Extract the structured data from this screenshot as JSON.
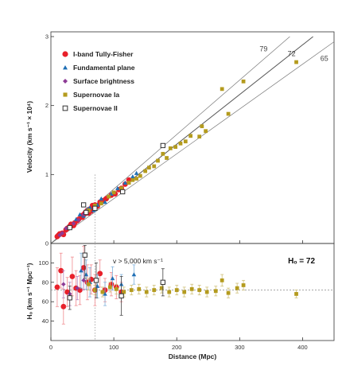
{
  "chart_data": [
    {
      "type": "scatter",
      "panel": "top",
      "ylabel": "Velocity (km s⁻¹ × 10⁴)",
      "xlim": [
        0,
        450
      ],
      "ylim": [
        0,
        3
      ],
      "yticks": [
        "0",
        "1",
        "2",
        "3"
      ],
      "grid": false,
      "legend": "top-left",
      "fit_lines": [
        {
          "label": "79",
          "slope": 79
        },
        {
          "label": "72",
          "slope": 72
        },
        {
          "label": "65",
          "slope": 65
        }
      ],
      "vertical_dotted_x": 70,
      "series": [
        {
          "name": "I-band Tully-Fisher",
          "marker": "circle",
          "color": "#e8202a",
          "x": [
            10,
            12,
            14,
            18,
            20,
            24,
            26,
            30,
            32,
            36,
            38,
            42,
            44,
            48,
            50,
            52,
            54,
            56,
            58,
            60,
            62,
            64,
            66,
            68,
            70,
            74,
            78,
            82,
            88,
            96,
            102,
            108,
            112,
            118,
            124
          ],
          "y": [
            0.1,
            0.12,
            0.14,
            0.15,
            0.13,
            0.2,
            0.22,
            0.25,
            0.28,
            0.26,
            0.3,
            0.33,
            0.35,
            0.4,
            0.38,
            0.42,
            0.44,
            0.46,
            0.48,
            0.44,
            0.5,
            0.47,
            0.55,
            0.52,
            0.56,
            0.54,
            0.6,
            0.62,
            0.65,
            0.7,
            0.72,
            0.78,
            0.8,
            0.86,
            0.92
          ]
        },
        {
          "name": "Fundamental plane",
          "marker": "triangle",
          "color": "#1f6fb5",
          "x": [
            40,
            46,
            52,
            58,
            62,
            68,
            74,
            80,
            86,
            96,
            106,
            118,
            130,
            136
          ],
          "y": [
            0.35,
            0.42,
            0.4,
            0.5,
            0.52,
            0.48,
            0.56,
            0.65,
            0.6,
            0.72,
            0.8,
            0.88,
            0.97,
            1.02
          ]
        },
        {
          "name": "Surface brightness",
          "marker": "diamond",
          "color": "#8d3b96",
          "x": [
            14,
            18,
            24,
            30,
            36,
            44,
            52
          ],
          "y": [
            0.12,
            0.15,
            0.22,
            0.24,
            0.29,
            0.34,
            0.42
          ]
        },
        {
          "name": "Supernovae Ia",
          "marker": "square",
          "color": "#b49b1e",
          "x": [
            60,
            70,
            80,
            92,
            100,
            112,
            124,
            130,
            136,
            142,
            150,
            156,
            164,
            170,
            178,
            184,
            190,
            198,
            206,
            214,
            222,
            236,
            240,
            246,
            272,
            282,
            306,
            390
          ],
          "y": [
            0.48,
            0.55,
            0.58,
            0.68,
            0.74,
            0.8,
            0.88,
            0.92,
            0.94,
            0.98,
            1.05,
            1.1,
            1.12,
            1.2,
            1.3,
            1.24,
            1.38,
            1.4,
            1.45,
            1.48,
            1.56,
            1.55,
            1.7,
            1.63,
            2.24,
            1.88,
            2.35,
            2.63
          ]
        },
        {
          "name": "Supernovae II",
          "marker": "open-square",
          "color": "#333333",
          "x": [
            30,
            52,
            56,
            70,
            114,
            178
          ],
          "y": [
            0.23,
            0.56,
            0.45,
            0.51,
            0.75,
            1.42
          ]
        }
      ]
    },
    {
      "type": "scatter",
      "panel": "bottom",
      "xlabel": "Distance (Mpc)",
      "ylabel": "Hₒ (km s⁻¹ Mpc⁻¹)",
      "xlim": [
        0,
        450
      ],
      "ylim": [
        20,
        120
      ],
      "xticks": [
        "0",
        "100",
        "200",
        "300",
        "400"
      ],
      "yticks": [
        "40",
        "60",
        "80",
        "100"
      ],
      "grid": false,
      "reference_line_y": 72,
      "vertical_dotted_x": 70,
      "annotation": "v > 5,000 km s⁻¹",
      "h_label": "Hₒ = 72",
      "series": [
        {
          "name": "I-band Tully-Fisher",
          "marker": "circle",
          "color": "#e8202a",
          "x": [
            10,
            16,
            20,
            26,
            34,
            40,
            46,
            52,
            58,
            64,
            70,
            78,
            86,
            96,
            104,
            112
          ],
          "y": [
            75,
            92,
            55,
            70,
            86,
            74,
            72,
            95,
            80,
            83,
            72,
            89,
            72,
            78,
            75,
            70
          ],
          "err": [
            20,
            18,
            18,
            15,
            20,
            18,
            15,
            22,
            18,
            15,
            16,
            14,
            12,
            12,
            12,
            10
          ]
        },
        {
          "name": "Fundamental plane",
          "marker": "triangle",
          "color": "#1f6fb5",
          "x": [
            48,
            56,
            62,
            74,
            86,
            98,
            112,
            132
          ],
          "y": [
            92,
            88,
            80,
            76,
            68,
            84,
            78,
            88
          ],
          "err": [
            18,
            15,
            15,
            12,
            12,
            12,
            10,
            10
          ]
        },
        {
          "name": "Surface brightness",
          "marker": "diamond",
          "color": "#8d3b96",
          "x": [
            20,
            30,
            42,
            52
          ],
          "y": [
            78,
            68,
            74,
            82
          ],
          "err": [
            14,
            12,
            12,
            10
          ]
        },
        {
          "name": "Supernovae Ia",
          "marker": "square",
          "color": "#b49b1e",
          "x": [
            60,
            70,
            82,
            94,
            104,
            116,
            128,
            140,
            152,
            164,
            176,
            188,
            200,
            212,
            224,
            236,
            248,
            262,
            272,
            282,
            296,
            306,
            390
          ],
          "y": [
            78,
            72,
            70,
            75,
            73,
            70,
            72,
            73,
            70,
            72,
            74,
            70,
            72,
            70,
            73,
            72,
            70,
            71,
            82,
            69,
            74,
            77,
            68
          ],
          "err": [
            6,
            5,
            5,
            5,
            5,
            5,
            5,
            5,
            5,
            5,
            5,
            5,
            5,
            5,
            5,
            5,
            5,
            5,
            6,
            5,
            5,
            5,
            4
          ]
        },
        {
          "name": "Supernovae II",
          "marker": "open-square",
          "color": "#333333",
          "x": [
            30,
            54,
            72,
            112,
            178
          ],
          "y": [
            64,
            108,
            82,
            66,
            80
          ],
          "err": [
            12,
            24,
            18,
            20,
            14
          ]
        }
      ]
    }
  ]
}
